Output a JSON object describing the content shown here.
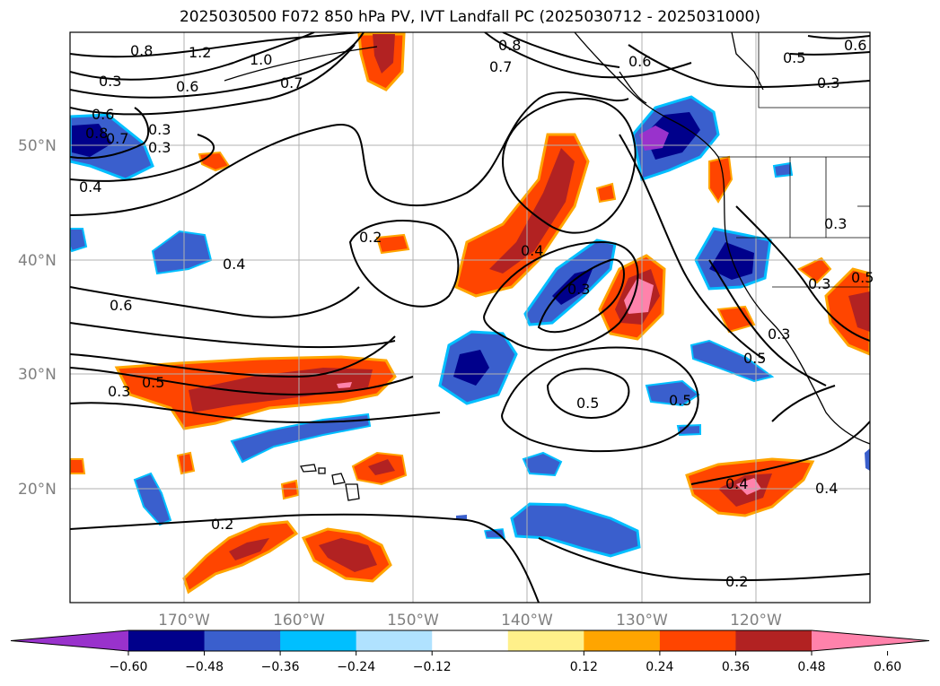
{
  "title": "2025030500 F072 850 hPa PV, IVT Landfall PC (2025030712 - 2025031000)",
  "lat_labels": [
    "50°N",
    "40°N",
    "30°N",
    "20°N"
  ],
  "lon_labels": [
    "170°W",
    "160°W",
    "150°W",
    "140°W",
    "130°W",
    "120°W"
  ],
  "contour_labels": [
    "1.2",
    "1.0",
    "0.8",
    "0.6",
    "0.3",
    "0.6",
    "0.8",
    "0.7",
    "0.3",
    "0.4",
    "0.7",
    "0.8",
    "0.7",
    "0.6",
    "0.5",
    "0.3",
    "0.6",
    "0.2",
    "0.4",
    "0.6",
    "0.5",
    "0.3",
    "0.4",
    "0.3",
    "0.5",
    "0.5",
    "0.5",
    "0.2",
    "0.4",
    "0.4",
    "0.2",
    "0.3",
    "0.3",
    "0.3",
    "0.5",
    "0.3"
  ],
  "colorbar": {
    "ticks": [
      "−0.60",
      "−0.48",
      "−0.36",
      "−0.24",
      "−0.12",
      "0.12",
      "0.24",
      "0.36",
      "0.48",
      "0.60"
    ],
    "colors": [
      "#9932cc",
      "#00008b",
      "#3a5fcd",
      "#00bfff",
      "#b0e2ff",
      "#ffffff",
      "#fff08a",
      "#ffa500",
      "#ff4500",
      "#b22222",
      "#ff82ab"
    ]
  }
}
